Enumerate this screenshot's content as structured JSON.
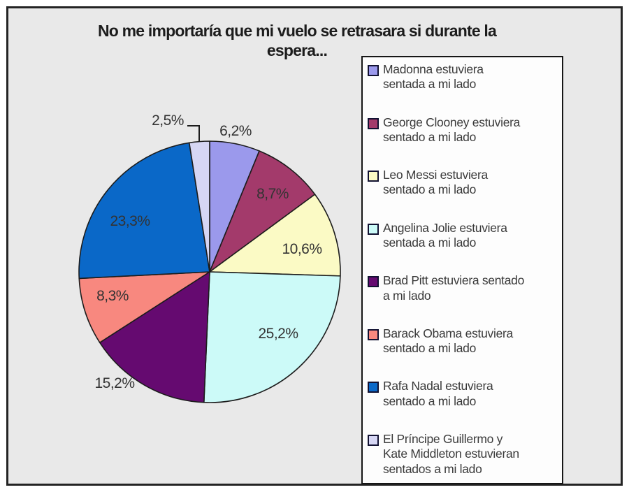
{
  "title": {
    "line1": "No me importaría que mi vuelo se retrasara si durante la",
    "line2": "espera..."
  },
  "chart_data": {
    "type": "pie",
    "title": "No me importaría que mi vuelo se retrasara si durante la espera...",
    "direction": "clockwise",
    "start_angle_deg": 0,
    "decimal_separator": ",",
    "legend_position": "right",
    "plot_background": "#E9E9E9",
    "slice_stroke": "#1c1c1c",
    "segments": [
      {
        "label": "Madonna estuviera sentada a mi lado",
        "value": 6.2,
        "display": "6,2%",
        "color": "#9B99EC",
        "label_placement": "outside",
        "label_offset": [
          37,
          -202
        ]
      },
      {
        "label": "George Clooney estuviera sentado a mi lado",
        "value": 8.7,
        "display": "8,7%",
        "color": "#A33A6B",
        "label_placement": "inside",
        "label_offset": [
          90,
          -112
        ]
      },
      {
        "label": "Leo Messi estuviera sentado a mi lado",
        "value": 10.6,
        "display": "10,6%",
        "color": "#FBFAC5",
        "label_placement": "inside",
        "label_offset": [
          132,
          -33
        ]
      },
      {
        "label": "Angelina Jolie estuviera sentada a mi lado",
        "value": 25.2,
        "display": "25,2%",
        "color": "#CCFAF8",
        "label_placement": "inside",
        "label_offset": [
          98,
          88
        ]
      },
      {
        "label": "Brad Pitt estuviera sentado a mi lado",
        "value": 15.2,
        "display": "15,2%",
        "color": "#650A70",
        "label_placement": "outside",
        "label_offset": [
          -136,
          159
        ]
      },
      {
        "label": "Barack Obama estuviera sentado a mi lado",
        "value": 8.3,
        "display": "8,3%",
        "color": "#F8887F",
        "label_placement": "inside",
        "label_offset": [
          -139,
          34
        ]
      },
      {
        "label": "Rafa Nadal estuviera sentado a mi lado",
        "value": 23.3,
        "display": "23,3%",
        "color": "#0A68C8",
        "label_placement": "inside",
        "label_offset": [
          -114,
          -73
        ]
      },
      {
        "label": "El Príncipe Guillermo y Kate Middleton estuvieran sentados a mi lado",
        "value": 2.5,
        "display": "2,5%",
        "color": "#D6D6F4",
        "label_placement": "outside-callout",
        "label_offset": [
          -60,
          -217
        ],
        "callout": [
          [
            268,
            180
          ],
          [
            285,
            180
          ],
          [
            285,
            203
          ]
        ]
      }
    ]
  },
  "legend": {
    "items": [
      {
        "swatch_color": "#9B99EC",
        "lines": [
          "Madonna estuviera",
          "sentada a mi lado"
        ]
      },
      {
        "swatch_color": "#A33A6B",
        "lines": [
          "George Clooney estuviera",
          "sentado a mi lado"
        ]
      },
      {
        "swatch_color": "#FBFAC5",
        "lines": [
          "Leo Messi estuviera",
          "sentado a mi lado"
        ]
      },
      {
        "swatch_color": "#CCFAF8",
        "lines": [
          "Angelina Jolie estuviera",
          "sentada a mi lado"
        ]
      },
      {
        "swatch_color": "#650A70",
        "lines": [
          "Brad Pitt estuviera sentado",
          "a mi lado"
        ]
      },
      {
        "swatch_color": "#F8887F",
        "lines": [
          "Barack Obama estuviera",
          "sentado a mi lado"
        ]
      },
      {
        "swatch_color": "#0A68C8",
        "lines": [
          "Rafa Nadal estuviera",
          "sentado a mi lado"
        ]
      },
      {
        "swatch_color": "#D6D6F4",
        "lines": [
          "El Príncipe Guillermo y",
          "Kate Middleton estuvieran",
          "sentados a mi lado"
        ]
      }
    ]
  }
}
